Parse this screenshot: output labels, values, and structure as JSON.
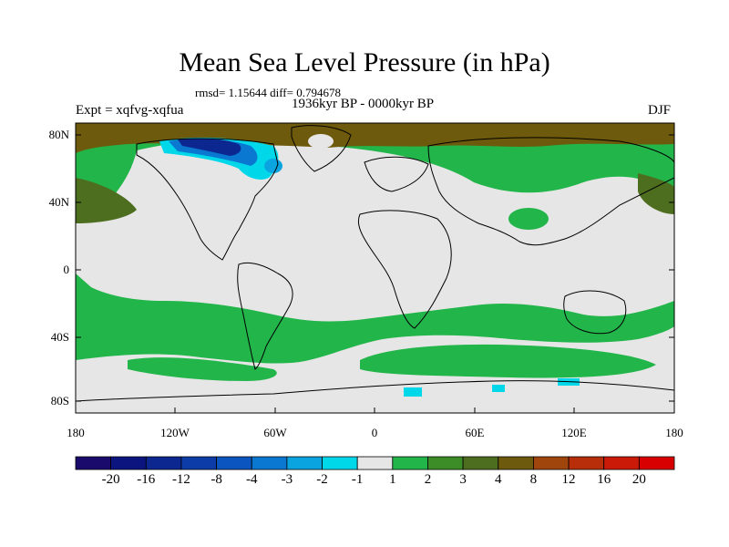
{
  "title": "Mean Sea Level Pressure (in hPa)",
  "stats": "rmsd= 1.15644 diff= 0.794678",
  "period": "1936kyr BP - 0000kyr BP",
  "experiment": "Expt = xqfvg-xqfua",
  "season": "DJF",
  "lat_labels": [
    "80N",
    "40N",
    "0",
    "40S",
    "80S"
  ],
  "lon_labels": [
    "180",
    "120W",
    "60W",
    "0",
    "60E",
    "120E",
    "180"
  ],
  "colorbar": {
    "labels": [
      "-20",
      "-16",
      "-12",
      "-8",
      "-4",
      "-3",
      "-2",
      "-1",
      "1",
      "2",
      "3",
      "4",
      "8",
      "12",
      "16",
      "20"
    ],
    "colors": [
      "#1a0a6b",
      "#0c1480",
      "#0c2890",
      "#0b3ca8",
      "#0a55c0",
      "#0a78d0",
      "#0aa5e0",
      "#00d8ea",
      "#e6e6e6",
      "#22b54a",
      "#3c8c28",
      "#4d6e1e",
      "#6e5a0c",
      "#a0460c",
      "#b82d0a",
      "#cc1a08",
      "#d80000"
    ]
  }
}
